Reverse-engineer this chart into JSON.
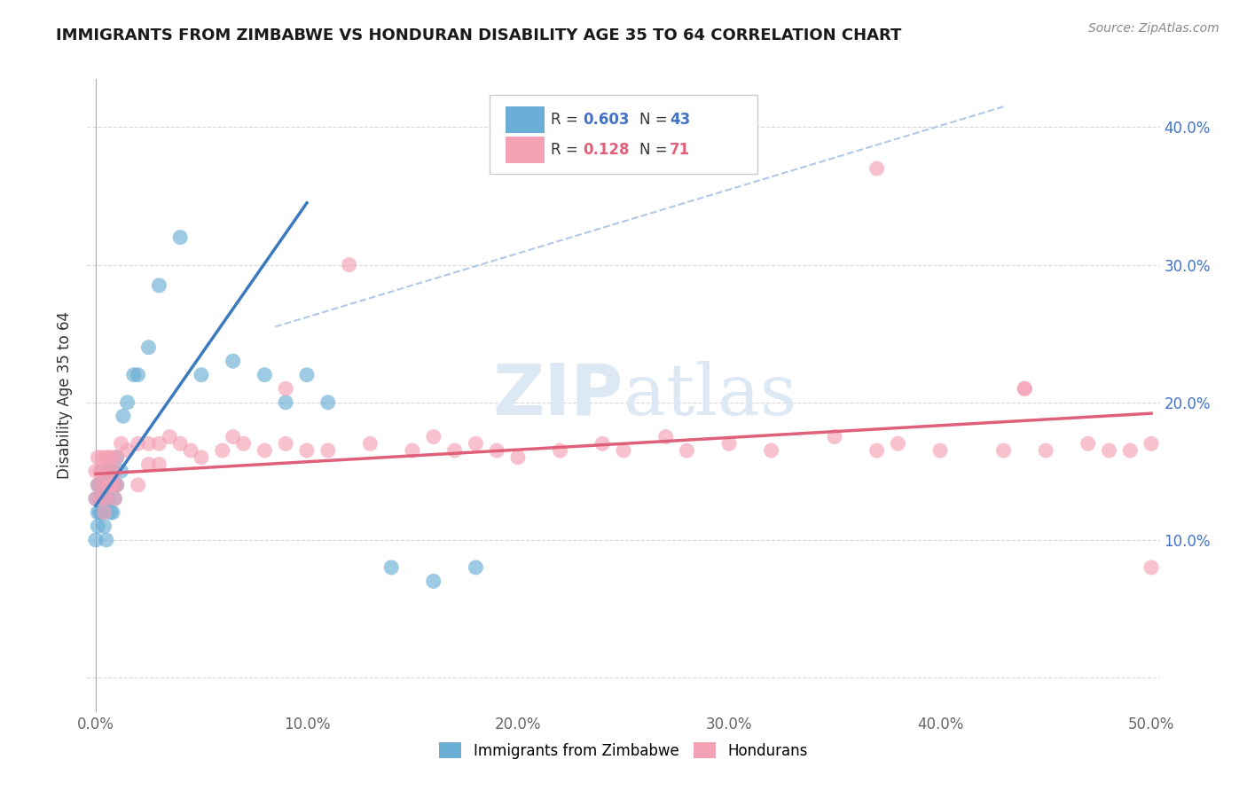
{
  "title": "IMMIGRANTS FROM ZIMBABWE VS HONDURAN DISABILITY AGE 35 TO 64 CORRELATION CHART",
  "source": "Source: ZipAtlas.com",
  "ylabel": "Disability Age 35 to 64",
  "xlim": [
    -0.004,
    0.504
  ],
  "ylim": [
    -0.025,
    0.435
  ],
  "x_ticks": [
    0.0,
    0.1,
    0.2,
    0.3,
    0.4,
    0.5
  ],
  "x_tick_labels": [
    "0.0%",
    "10.0%",
    "20.0%",
    "30.0%",
    "40.0%",
    "50.0%"
  ],
  "y_ticks": [
    0.0,
    0.1,
    0.2,
    0.3,
    0.4
  ],
  "y_right_labels": [
    "10.0%",
    "20.0%",
    "30.0%",
    "40.0%"
  ],
  "R_zimbabwe": 0.603,
  "N_zimbabwe": 43,
  "R_honduran": 0.128,
  "N_honduran": 71,
  "color_zimbabwe": "#6aaed6",
  "color_honduran": "#f4a0b5",
  "color_line_zimbabwe": "#3b7abf",
  "color_line_honduran": "#e0607a",
  "color_dashed": "#b0c8e8",
  "watermark_color": "#dde8f5",
  "background_color": "#ffffff",
  "grid_color": "#d8d8d8",
  "tick_color": "#4472c4",
  "zimbabwe_x": [
    0.0,
    0.0,
    0.001,
    0.001,
    0.001,
    0.002,
    0.002,
    0.002,
    0.003,
    0.003,
    0.003,
    0.004,
    0.004,
    0.005,
    0.005,
    0.005,
    0.006,
    0.006,
    0.007,
    0.007,
    0.008,
    0.008,
    0.009,
    0.009,
    0.01,
    0.01,
    0.012,
    0.013,
    0.015,
    0.018,
    0.02,
    0.025,
    0.03,
    0.04,
    0.05,
    0.065,
    0.08,
    0.09,
    0.1,
    0.11,
    0.14,
    0.16,
    0.18
  ],
  "zimbabwe_y": [
    0.13,
    0.1,
    0.14,
    0.12,
    0.11,
    0.14,
    0.13,
    0.12,
    0.15,
    0.14,
    0.12,
    0.13,
    0.11,
    0.14,
    0.13,
    0.1,
    0.15,
    0.13,
    0.14,
    0.12,
    0.15,
    0.12,
    0.14,
    0.13,
    0.16,
    0.14,
    0.15,
    0.19,
    0.2,
    0.22,
    0.22,
    0.24,
    0.285,
    0.32,
    0.22,
    0.23,
    0.22,
    0.2,
    0.22,
    0.2,
    0.08,
    0.07,
    0.08
  ],
  "honduran_x": [
    0.0,
    0.0,
    0.001,
    0.001,
    0.002,
    0.002,
    0.003,
    0.003,
    0.004,
    0.004,
    0.005,
    0.005,
    0.006,
    0.006,
    0.007,
    0.007,
    0.008,
    0.008,
    0.009,
    0.009,
    0.01,
    0.01,
    0.012,
    0.015,
    0.02,
    0.02,
    0.025,
    0.025,
    0.03,
    0.03,
    0.035,
    0.04,
    0.045,
    0.05,
    0.06,
    0.065,
    0.07,
    0.08,
    0.09,
    0.1,
    0.11,
    0.13,
    0.15,
    0.16,
    0.17,
    0.18,
    0.19,
    0.2,
    0.22,
    0.24,
    0.25,
    0.27,
    0.28,
    0.3,
    0.32,
    0.35,
    0.37,
    0.38,
    0.4,
    0.43,
    0.45,
    0.47,
    0.48,
    0.49,
    0.5,
    0.12,
    0.09,
    0.37,
    0.44,
    0.44,
    0.5
  ],
  "honduran_y": [
    0.15,
    0.13,
    0.16,
    0.14,
    0.15,
    0.13,
    0.16,
    0.14,
    0.15,
    0.12,
    0.16,
    0.13,
    0.16,
    0.14,
    0.15,
    0.14,
    0.16,
    0.14,
    0.15,
    0.13,
    0.16,
    0.14,
    0.17,
    0.165,
    0.17,
    0.14,
    0.17,
    0.155,
    0.17,
    0.155,
    0.175,
    0.17,
    0.165,
    0.16,
    0.165,
    0.175,
    0.17,
    0.165,
    0.17,
    0.165,
    0.165,
    0.17,
    0.165,
    0.175,
    0.165,
    0.17,
    0.165,
    0.16,
    0.165,
    0.17,
    0.165,
    0.175,
    0.165,
    0.17,
    0.165,
    0.175,
    0.165,
    0.17,
    0.165,
    0.165,
    0.165,
    0.17,
    0.165,
    0.165,
    0.17,
    0.3,
    0.21,
    0.37,
    0.21,
    0.21,
    0.08
  ],
  "zim_line_x": [
    0.0,
    0.1
  ],
  "zim_line_y": [
    0.125,
    0.345
  ],
  "hon_line_x": [
    0.0,
    0.5
  ],
  "hon_line_y": [
    0.148,
    0.192
  ],
  "dash_line_x": [
    0.085,
    0.43
  ],
  "dash_line_y": [
    0.255,
    0.415
  ]
}
